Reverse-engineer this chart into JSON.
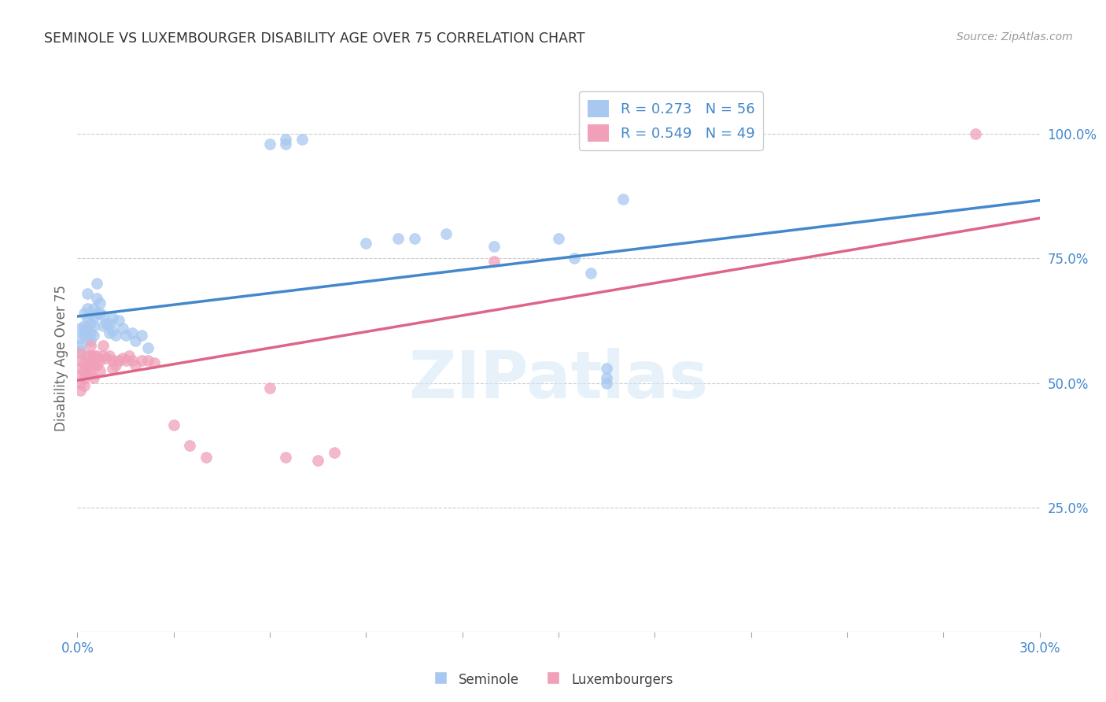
{
  "title": "SEMINOLE VS LUXEMBOURGER DISABILITY AGE OVER 75 CORRELATION CHART",
  "source": "Source: ZipAtlas.com",
  "ylabel": "Disability Age Over 75",
  "watermark": "ZIPatlas",
  "blue_R": 0.273,
  "blue_N": 56,
  "pink_R": 0.549,
  "pink_N": 49,
  "xlim": [
    0.0,
    0.3
  ],
  "ylim": [
    0.0,
    1.1
  ],
  "blue_color": "#A8C8F0",
  "pink_color": "#F0A0B8",
  "blue_line_color": "#4488CC",
  "pink_line_color": "#DD6688",
  "seminole_x": [
    0.001,
    0.001,
    0.001,
    0.001,
    0.002,
    0.002,
    0.002,
    0.002,
    0.003,
    0.003,
    0.003,
    0.003,
    0.003,
    0.004,
    0.004,
    0.004,
    0.005,
    0.005,
    0.005,
    0.005,
    0.006,
    0.006,
    0.006,
    0.007,
    0.007,
    0.008,
    0.008,
    0.009,
    0.01,
    0.01,
    0.011,
    0.011,
    0.012,
    0.013,
    0.014,
    0.015,
    0.017,
    0.018,
    0.02,
    0.022,
    0.06,
    0.065,
    0.065,
    0.07,
    0.09,
    0.1,
    0.105,
    0.115,
    0.13,
    0.15,
    0.155,
    0.16,
    0.165,
    0.165,
    0.165,
    0.17
  ],
  "seminole_y": [
    0.61,
    0.59,
    0.575,
    0.565,
    0.64,
    0.615,
    0.605,
    0.595,
    0.68,
    0.65,
    0.63,
    0.61,
    0.595,
    0.62,
    0.6,
    0.585,
    0.65,
    0.63,
    0.615,
    0.595,
    0.7,
    0.67,
    0.64,
    0.66,
    0.64,
    0.635,
    0.615,
    0.62,
    0.62,
    0.6,
    0.63,
    0.605,
    0.595,
    0.625,
    0.61,
    0.595,
    0.6,
    0.585,
    0.595,
    0.57,
    0.98,
    0.99,
    0.98,
    0.99,
    0.78,
    0.79,
    0.79,
    0.8,
    0.775,
    0.79,
    0.75,
    0.72,
    0.53,
    0.51,
    0.5,
    0.87
  ],
  "luxembourger_x": [
    0.001,
    0.001,
    0.001,
    0.001,
    0.001,
    0.001,
    0.002,
    0.002,
    0.002,
    0.002,
    0.003,
    0.003,
    0.003,
    0.004,
    0.004,
    0.004,
    0.004,
    0.005,
    0.005,
    0.005,
    0.006,
    0.006,
    0.007,
    0.007,
    0.008,
    0.008,
    0.009,
    0.01,
    0.011,
    0.011,
    0.012,
    0.013,
    0.014,
    0.015,
    0.016,
    0.017,
    0.018,
    0.02,
    0.022,
    0.024,
    0.03,
    0.035,
    0.04,
    0.06,
    0.065,
    0.075,
    0.08,
    0.13,
    0.28
  ],
  "luxembourger_y": [
    0.56,
    0.545,
    0.53,
    0.515,
    0.5,
    0.485,
    0.54,
    0.525,
    0.51,
    0.495,
    0.555,
    0.535,
    0.52,
    0.575,
    0.555,
    0.54,
    0.52,
    0.555,
    0.535,
    0.51,
    0.555,
    0.535,
    0.545,
    0.525,
    0.575,
    0.555,
    0.55,
    0.555,
    0.545,
    0.53,
    0.535,
    0.545,
    0.55,
    0.545,
    0.555,
    0.545,
    0.535,
    0.545,
    0.545,
    0.54,
    0.415,
    0.375,
    0.35,
    0.49,
    0.35,
    0.345,
    0.36,
    0.745,
    1.0
  ]
}
